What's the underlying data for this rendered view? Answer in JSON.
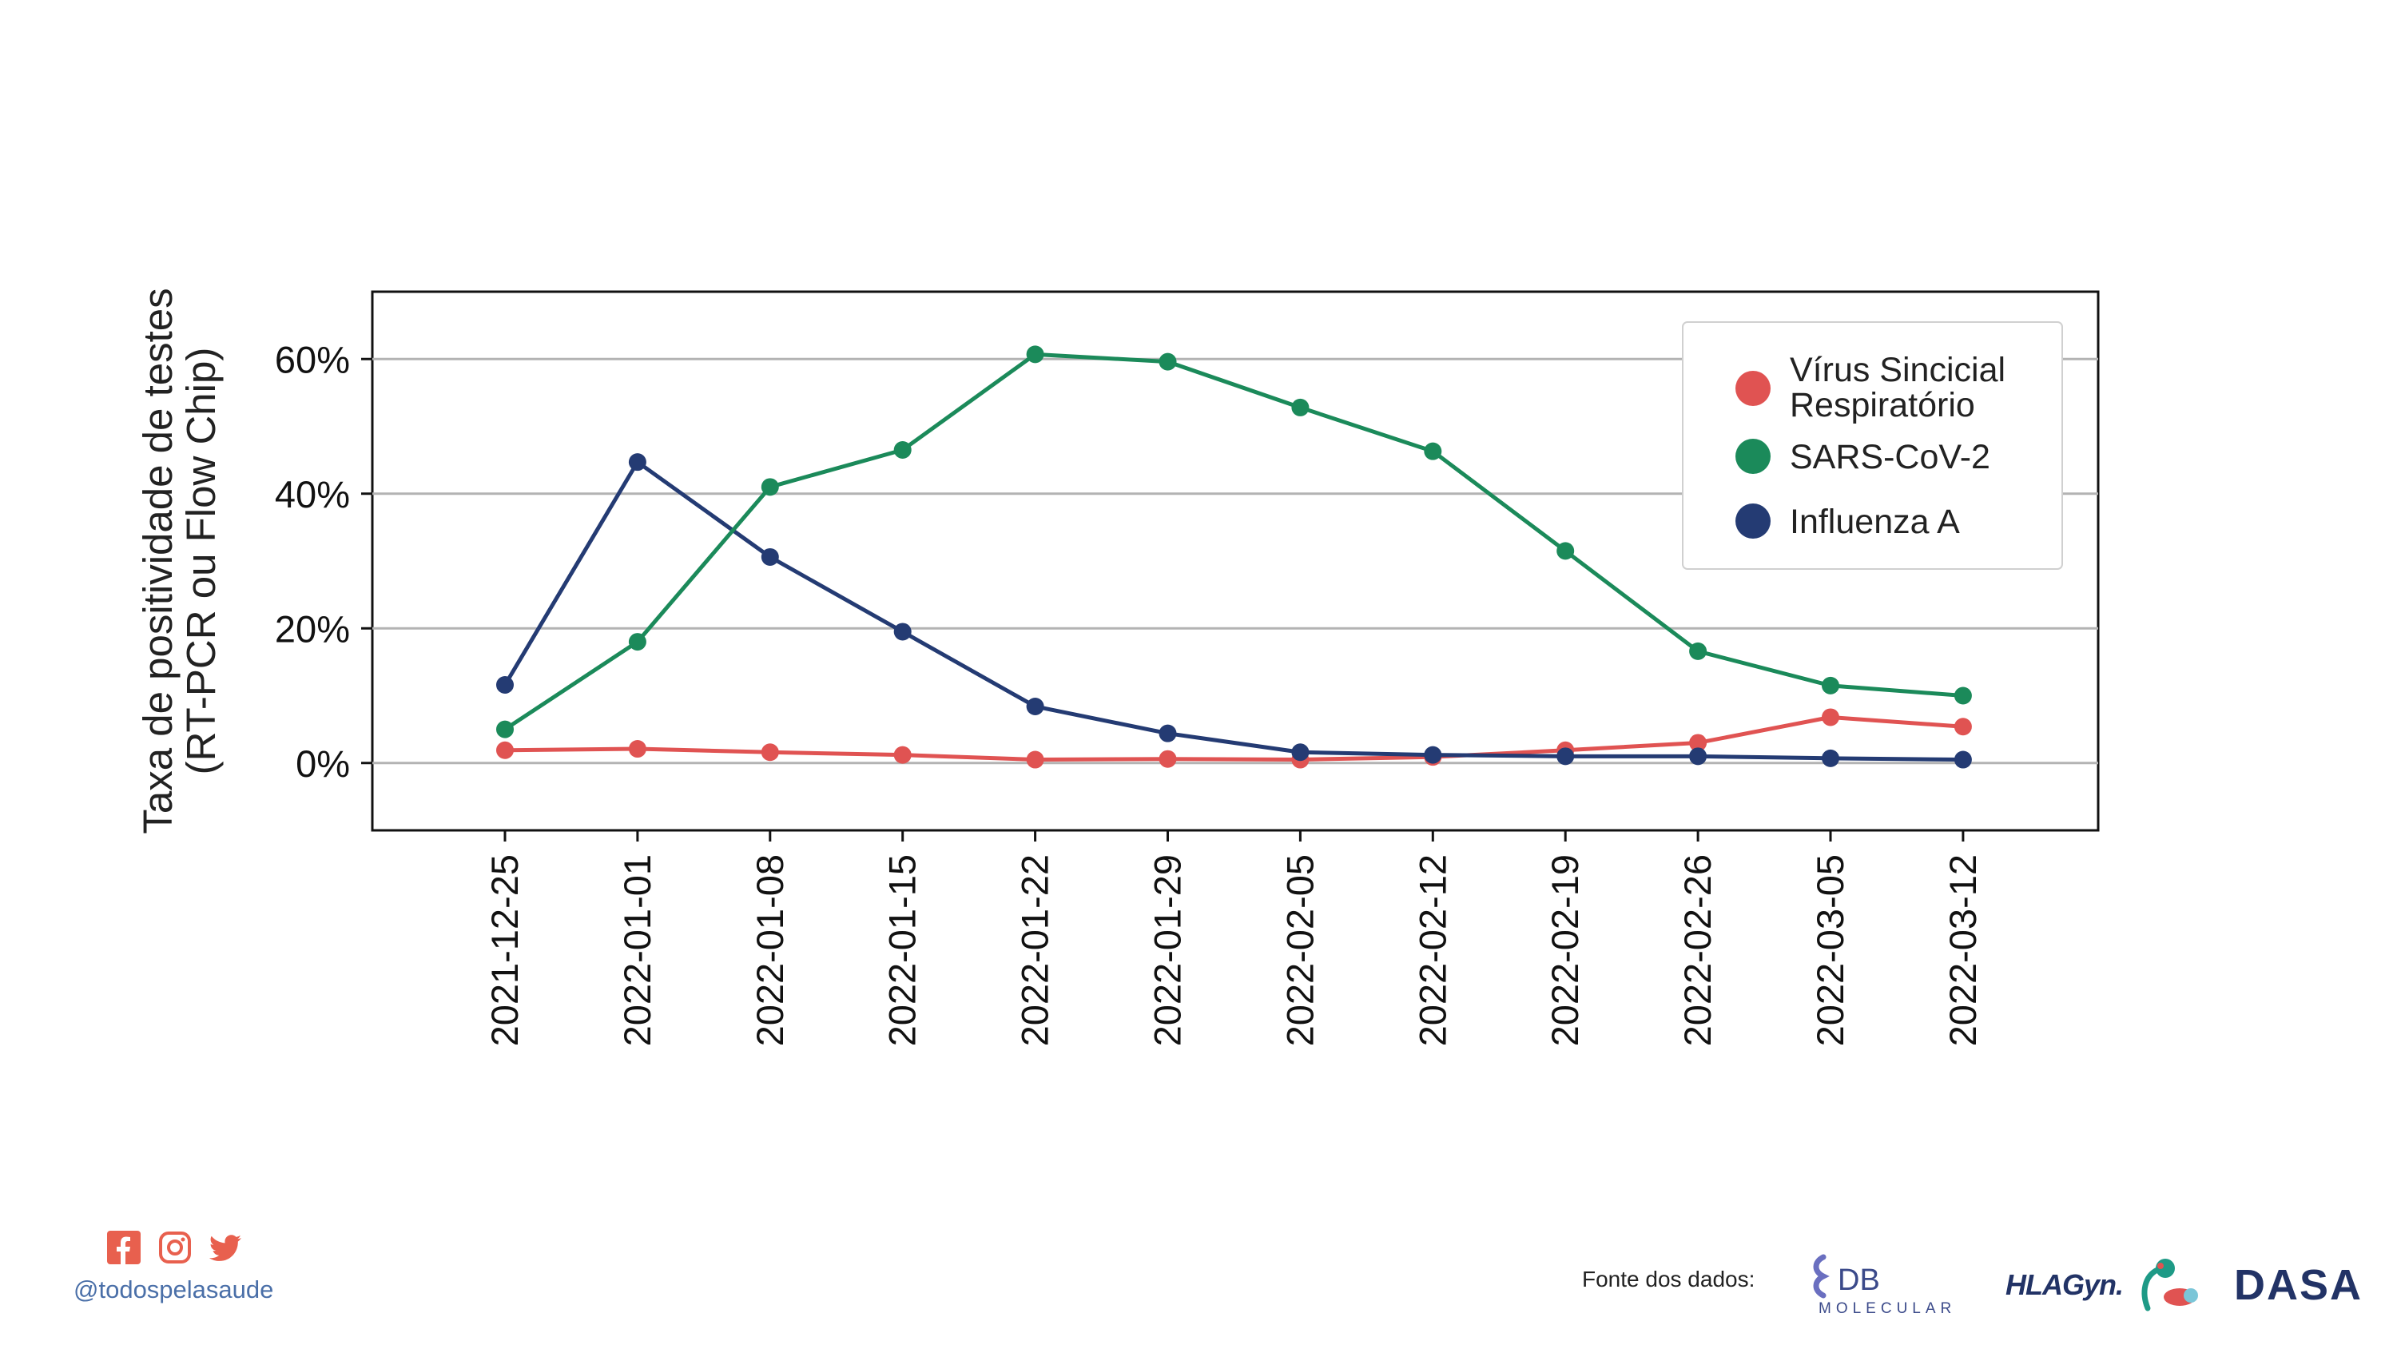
{
  "chart_data": {
    "type": "line",
    "title": "",
    "xlabel": "",
    "ylabel_lines": [
      "Taxa de positividade de testes",
      "(RT-PCR ou Flow Chip)"
    ],
    "x": [
      "2021-12-25",
      "2022-01-01",
      "2022-01-08",
      "2022-01-15",
      "2022-01-22",
      "2022-01-29",
      "2022-02-05",
      "2022-02-12",
      "2022-02-19",
      "2022-02-26",
      "2022-03-05",
      "2022-03-12"
    ],
    "ylim": [
      -0.1,
      0.7
    ],
    "yticks": [
      0,
      0.2,
      0.4,
      0.6
    ],
    "ytick_labels": [
      "0%",
      "20%",
      "40%",
      "60%"
    ],
    "grid": "horizontal",
    "legend_position": "top-right",
    "series": [
      {
        "name": "SARS-CoV-2",
        "color": "#1b8a5a",
        "values": [
          0.05,
          0.18,
          0.41,
          0.465,
          0.607,
          0.596,
          0.528,
          0.463,
          0.315,
          0.166,
          0.115,
          0.1
        ]
      },
      {
        "name": "Influenza A",
        "color": "#243b73",
        "values": [
          0.116,
          0.447,
          0.306,
          0.195,
          0.084,
          0.044,
          0.016,
          0.012,
          0.01,
          0.01,
          0.007,
          0.005
        ]
      },
      {
        "name": "Vírus Sincicial Respiratório",
        "legend_lines": [
          "Vírus Sincicial",
          "Respiratório"
        ],
        "color": "#e05352",
        "values": [
          0.019,
          0.021,
          0.016,
          0.012,
          0.005,
          0.006,
          0.005,
          0.009,
          0.019,
          0.03,
          0.068,
          0.054
        ]
      }
    ],
    "legend_order": [
      2,
      0,
      1
    ]
  },
  "footer": {
    "handle": "@todospelasaude",
    "social_icons": [
      "facebook-icon",
      "instagram-icon",
      "twitter-icon"
    ],
    "social_color": "#e8604e",
    "source_label": "Fonte dos dados:",
    "logos": {
      "db_main": "DB",
      "db_sub": "MOLECULAR",
      "hla": "HLAGyn.",
      "dasa": "DASA"
    }
  }
}
